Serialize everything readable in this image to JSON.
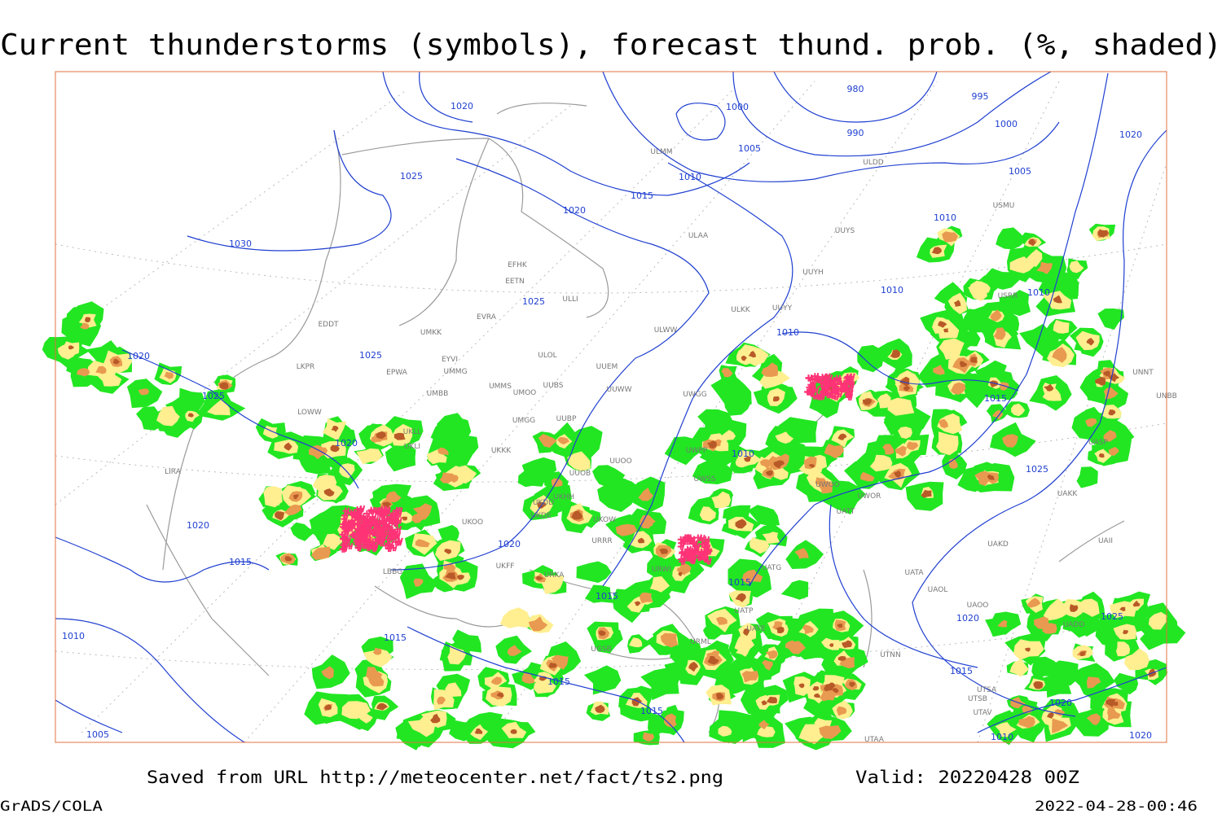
{
  "title": "Current thunderstorms (symbols), forecast thund. prob. (%, shaded)",
  "isobar_labels": [
    1020,
    1025,
    1030,
    1020,
    1015,
    1010,
    1005,
    1000,
    980,
    995,
    990,
    1000,
    1005,
    1010,
    1020,
    1010,
    1010,
    1025,
    1025,
    1020,
    1025,
    1020,
    1020,
    1015,
    1010,
    1005,
    1015,
    1020,
    1015,
    1015,
    1010,
    1015,
    1025,
    1010,
    1020,
    1015,
    1015,
    1015,
    1020,
    1025,
    1010,
    1020
  ],
  "station_labels": [
    "ULAA",
    "UUYS",
    "USMU",
    "UUYH",
    "ULKK",
    "UUYY",
    "ULWW",
    "UUEM",
    "UUWW",
    "UWGG",
    "UWPP",
    "UWSS",
    "UUOO",
    "UUOB",
    "UUBP",
    "UUBS",
    "UMMS",
    "UMOO",
    "UMGG",
    "UKKK",
    "UKHH",
    "UKDD",
    "UKDE",
    "UKOW",
    "URRR",
    "UKFF",
    "URKA",
    "URWI",
    "UATG",
    "UATA",
    "UAOL",
    "UAOO",
    "UADD",
    "UTNN",
    "URML",
    "UGSB",
    "UATE",
    "UATP",
    "EFHK",
    "EETN",
    "EVRA",
    "ULOL",
    "UMKK",
    "EYVI",
    "UMMG",
    "EPWA",
    "UMBB",
    "LKPR",
    "EDDT",
    "LOWW",
    "UKLL",
    "UKLI",
    "LBBG",
    "UKOO",
    "LIRA",
    "UWOO",
    "UWOR",
    "UATT",
    "UAKD",
    "UAKK",
    "UASP",
    "UNNT",
    "UNBB",
    "UAII",
    "UTSA",
    "UTSB",
    "UTAV",
    "UTAA",
    "USRR",
    "ULMM",
    "ULDD",
    "ULLI"
  ],
  "footer": {
    "source": "Saved from URL http://meteocenter.net/fact/ts2.png",
    "valid": "Valid: 20220428 00Z",
    "software": "GrADS/COLA",
    "timestamp": "2022-04-28-00:46"
  }
}
